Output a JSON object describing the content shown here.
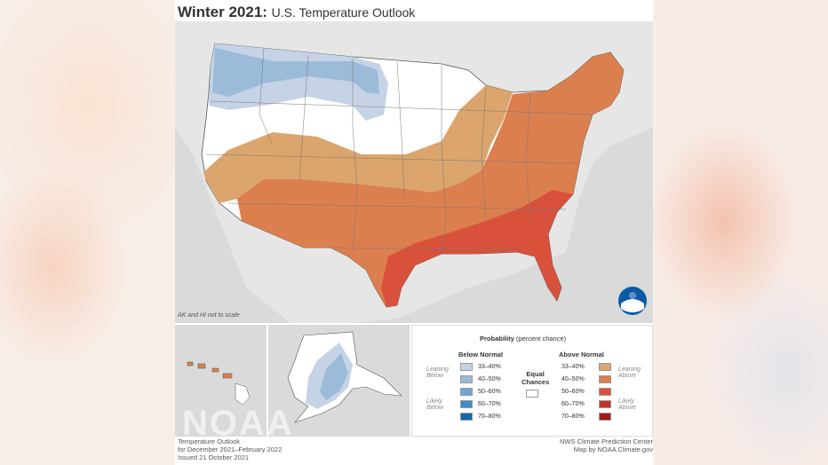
{
  "title": {
    "bold": "Winter 2021:",
    "rest": "U.S. Temperature Outlook"
  },
  "map_note": "AK and HI not to scale",
  "legend": {
    "heading": "Probability",
    "heading_sub": "(percent chance)",
    "below_normal": "Below Normal",
    "above_normal": "Above Normal",
    "equal": "Equal",
    "chances": "Chances",
    "leaning": "Leaning",
    "below": "Below",
    "above": "Above",
    "likely": "Likely",
    "below_items": [
      {
        "label": "33–40%",
        "color": "#c6d3e6"
      },
      {
        "label": "40–50%",
        "color": "#9bbbd9"
      },
      {
        "label": "50–60%",
        "color": "#6aa6d6"
      },
      {
        "label": "60–70%",
        "color": "#3a8ed0"
      },
      {
        "label": "70–80%",
        "color": "#1468a8"
      }
    ],
    "above_items": [
      {
        "label": "33–40%",
        "color": "#dba56d"
      },
      {
        "label": "40–50%",
        "color": "#dc7f4e"
      },
      {
        "label": "50–60%",
        "color": "#d9513a"
      },
      {
        "label": "60–70%",
        "color": "#c8302a"
      },
      {
        "label": "70–80%",
        "color": "#a01818"
      }
    ]
  },
  "watermark": "NOAA",
  "footer_left": [
    "Temperature Outlook",
    "for December 2021–February 2022",
    "Issued 21 October 2021"
  ],
  "footer_right": [
    "NWS Climate Prediction Center",
    "Map by NOAA Climate.gov"
  ]
}
